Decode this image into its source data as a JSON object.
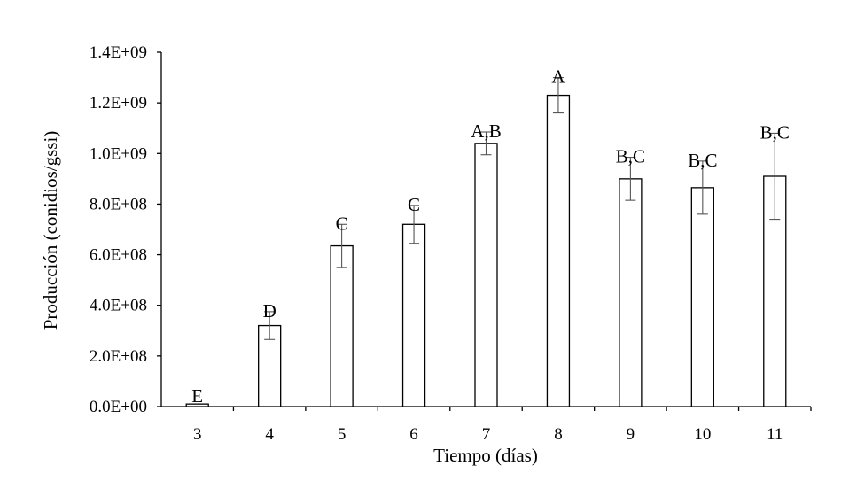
{
  "chart_data": {
    "type": "bar",
    "categories": [
      "3",
      "4",
      "5",
      "6",
      "7",
      "8",
      "9",
      "10",
      "11"
    ],
    "values": [
      10000000.0,
      320000000.0,
      635000000.0,
      720000000.0,
      1040000000.0,
      1230000000.0,
      900000000.0,
      865000000.0,
      910000000.0
    ],
    "errors": [
      0.0,
      55000000.0,
      85000000.0,
      75000000.0,
      45000000.0,
      70000000.0,
      85000000.0,
      105000000.0,
      170000000.0
    ],
    "data_labels": [
      "E",
      "D",
      "C",
      "C",
      "A,B",
      "A",
      "B,C",
      "B,C",
      "B,C"
    ],
    "xlabel": "Tiempo (días)",
    "ylabel": "Producción (conidios/gssi)",
    "ylim": [
      0,
      1400000000
    ],
    "yticks": [
      0,
      200000000,
      400000000,
      600000000,
      800000000,
      1000000000,
      1200000000,
      1400000000
    ],
    "ytick_labels": [
      "0.0E+00",
      "2.0E+08",
      "4.0E+08",
      "6.0E+08",
      "8.0E+08",
      "1.0E+09",
      "1.2E+09",
      "1.4E+09"
    ],
    "grid": false,
    "bar_fill": "#ffffff",
    "bar_stroke": "#000000"
  }
}
